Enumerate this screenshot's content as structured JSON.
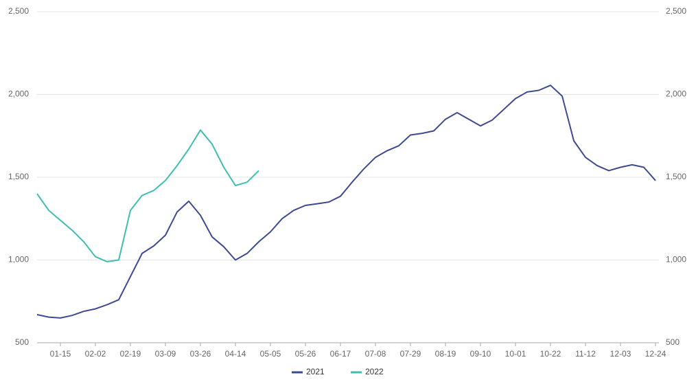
{
  "chart_data": {
    "type": "line",
    "categories": [
      null,
      null,
      "01-15",
      null,
      null,
      "02-02",
      null,
      null,
      "02-19",
      null,
      null,
      "03-09",
      null,
      null,
      "03-26",
      null,
      null,
      "04-14",
      null,
      null,
      "05-05",
      null,
      null,
      "05-26",
      null,
      null,
      "06-17",
      null,
      null,
      "07-08",
      null,
      null,
      "07-29",
      null,
      null,
      "08-19",
      null,
      null,
      "09-10",
      null,
      null,
      "10-01",
      null,
      null,
      "10-22",
      null,
      null,
      "11-12",
      null,
      null,
      "12-03",
      null,
      null,
      "12-24"
    ],
    "series": [
      {
        "name": "2021",
        "color": "#3d4a8f",
        "values": [
          670,
          655,
          650,
          665,
          690,
          705,
          730,
          760,
          900,
          1040,
          1085,
          1150,
          1290,
          1355,
          1270,
          1140,
          1080,
          1000,
          1040,
          1110,
          1170,
          1250,
          1300,
          1330,
          1340,
          1350,
          1385,
          1470,
          1550,
          1620,
          1660,
          1690,
          1755,
          1765,
          1780,
          1850,
          1890,
          1850,
          1810,
          1845,
          1910,
          1975,
          2015,
          2025,
          2055,
          1990,
          1720,
          1620,
          1570,
          1540,
          1560,
          1575,
          1560,
          1480
        ]
      },
      {
        "name": "2022",
        "color": "#3cbfae",
        "values": [
          1400,
          1300,
          1240,
          1180,
          1110,
          1020,
          990,
          1000,
          1300,
          1390,
          1420,
          1480,
          1570,
          1670,
          1785,
          1700,
          1560,
          1450,
          1470,
          1540,
          null,
          null,
          null,
          null,
          null,
          null,
          null,
          null,
          null,
          null,
          null,
          null,
          null,
          null,
          null,
          null,
          null,
          null,
          null,
          null,
          null,
          null,
          null,
          null,
          null,
          null,
          null,
          null,
          null,
          null,
          null,
          null,
          null,
          null
        ]
      }
    ],
    "ylim": [
      500,
      2500
    ],
    "yticks": [
      500,
      {
        "value": 1000,
        "label": "1,000"
      },
      {
        "value": 1500,
        "label": "1,500"
      },
      {
        "value": 2000,
        "label": "2,000"
      },
      {
        "value": 2500,
        "label": "2,500"
      }
    ],
    "y2lim": [
      500,
      2500
    ],
    "y2ticks": [
      500,
      {
        "value": 1000,
        "label": "1,000"
      },
      {
        "value": 1500,
        "label": "1,500"
      },
      {
        "value": 2000,
        "label": "2,000"
      },
      {
        "value": 2500,
        "label": "2,500"
      }
    ],
    "grid": true,
    "legend": "bottom"
  }
}
